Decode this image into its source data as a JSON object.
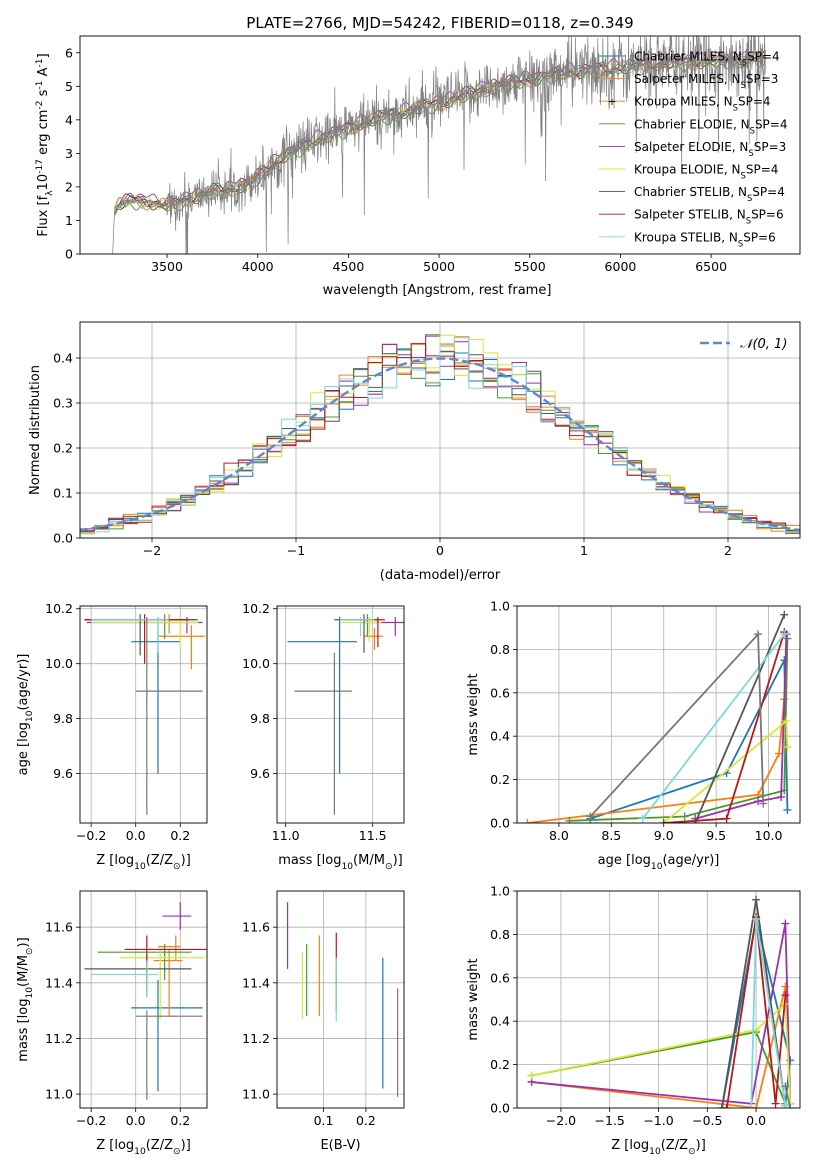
{
  "figure_title": "PLATE=2766, MJD=54242, FIBERID=0118, z=0.349",
  "series_styles": [
    {
      "name": "Chabrier MILES, N$_{SSP}$=4",
      "color": "#1f77b4"
    },
    {
      "name": "Salpeter MILES, N$_{SSP}$=3",
      "color": "#ff7f0e"
    },
    {
      "name": "Kroupa MILES, N$_{SSP}$=4",
      "color": "#e8801e"
    },
    {
      "name": "Chabrier ELODIE, N$_{SSP}$=4",
      "color": "#4b9a2f"
    },
    {
      "name": "Salpeter ELODIE, N$_{SSP}$=3",
      "color": "#9b30b0"
    },
    {
      "name": "Kroupa ELODIE, N$_{SSP}$=4",
      "color": "#d7e83a"
    },
    {
      "name": "Chabrier STELIB, N$_{SSP}$=4",
      "color": "#555555"
    },
    {
      "name": "Salpeter STELIB, N$_{SSP}$=6",
      "color": "#b81818"
    },
    {
      "name": "Kroupa STELIB, N$_{SSP}$=6",
      "color": "#7fd8e0"
    }
  ],
  "chart_data": [
    {
      "id": "spectrum",
      "type": "line",
      "xlabel": "wavelength [Angstrom, rest frame]",
      "ylabel": "Flux [f_λ10^-17 erg cm^-2 s^-1 A^-1]",
      "xlim": [
        3020,
        6990
      ],
      "ylim": [
        0,
        6.5
      ],
      "xticks": [
        3500,
        4000,
        4500,
        5000,
        5500,
        6000,
        6500
      ],
      "yticks": [
        0,
        1,
        2,
        3,
        4,
        5,
        6
      ],
      "legend_position": "right",
      "legend": [
        "Chabrier MILES, N_SSP=4",
        "Salpeter MILES, N_SSP=3",
        "Kroupa MILES, N_SSP=4",
        "Chabrier ELODIE, N_SSP=4",
        "Salpeter ELODIE, N_SSP=3",
        "Kroupa ELODIE, N_SSP=4",
        "Chabrier STELIB, N_SSP=4",
        "Salpeter STELIB, N_SSP=6",
        "Kroupa STELIB, N_SSP=6"
      ],
      "data_color": "#808080",
      "continuum": {
        "x": [
          3200,
          3210,
          3230,
          3300,
          3400,
          3480,
          3550,
          3650,
          3750,
          3850,
          3900,
          3950,
          4000,
          4050,
          4150,
          4250,
          4350,
          4500,
          4700,
          4900,
          5100,
          5300,
          5500,
          5700,
          5900,
          6100,
          6300,
          6500,
          6700,
          6800
        ],
        "y": [
          0.0,
          1.25,
          1.45,
          1.6,
          1.55,
          1.45,
          1.5,
          1.7,
          1.85,
          1.9,
          2.05,
          2.1,
          2.3,
          2.5,
          2.95,
          3.2,
          3.45,
          3.75,
          4.1,
          4.35,
          4.65,
          5.0,
          5.2,
          5.4,
          5.5,
          5.6,
          5.7,
          5.75,
          5.8,
          5.8
        ]
      }
    },
    {
      "id": "residual_histogram",
      "type": "histogram",
      "xlabel": "(data-model)/error",
      "ylabel": "Normed distribution",
      "xlim": [
        -2.5,
        2.5
      ],
      "ylim": [
        0,
        0.48
      ],
      "xticks": [
        -2,
        -1,
        0,
        1,
        2
      ],
      "yticks": [
        0.0,
        0.1,
        0.2,
        0.3,
        0.4
      ],
      "grid": true,
      "legend_position": "top-right",
      "legend": [
        "𝒩(0, 1)"
      ],
      "bin_width": 0.1,
      "reference_curve": {
        "name": "N(0,1)",
        "mean": 0,
        "sigma": 1,
        "color": "#5b87d4"
      }
    },
    {
      "id": "age_vs_Z",
      "type": "errorbar",
      "xlabel": "Z [log10(Z/Z⊙)]",
      "ylabel": "age [log10(age/yr)]",
      "xlim": [
        -0.25,
        0.32
      ],
      "ylim": [
        9.42,
        10.21
      ],
      "xticks": [
        -0.2,
        0.0,
        0.2
      ],
      "yticks": [
        9.6,
        9.8,
        10.0,
        10.2
      ],
      "grid": true,
      "points": [
        {
          "series": 0,
          "x": 0.1,
          "y": 10.08,
          "xerr": [
            0.12,
            0.1
          ],
          "yerr": [
            0.48,
            0.09
          ]
        },
        {
          "series": 1,
          "x": 0.25,
          "y": 10.1,
          "xerr": [
            0.15,
            0.06
          ],
          "yerr": [
            0.12,
            0.04
          ]
        },
        {
          "series": 2,
          "x": 0.15,
          "y": 10.16,
          "xerr": [
            0.25,
            0.1
          ],
          "yerr": [
            0.05,
            0.02
          ]
        },
        {
          "series": 3,
          "x": 0.13,
          "y": 10.16,
          "xerr": [
            0.35,
            0.15
          ],
          "yerr": [
            0.07,
            0.02
          ]
        },
        {
          "series": 4,
          "x": 0.23,
          "y": 10.15,
          "xerr": [
            0.45,
            0.07
          ],
          "yerr": [
            0.04,
            0.02
          ]
        },
        {
          "series": 5,
          "x": 0.2,
          "y": 10.15,
          "xerr": [
            0.4,
            0.08
          ],
          "yerr": [
            0.09,
            0.02
          ]
        },
        {
          "series": 6,
          "x": 0.02,
          "y": 10.16,
          "xerr": [
            0.25,
            0.25
          ],
          "yerr": [
            0.13,
            0.02
          ]
        },
        {
          "series": 7,
          "x": 0.04,
          "y": 10.16,
          "xerr": [
            0.27,
            0.2
          ],
          "yerr": [
            0.16,
            0.02
          ]
        },
        {
          "series": 8,
          "x": 0.1,
          "y": 10.16,
          "xerr": [
            0.3,
            0.05
          ],
          "yerr": [
            0.12,
            0.01
          ]
        },
        {
          "series": 9,
          "x": 0.05,
          "y": 9.9,
          "xerr": [
            0.05,
            0.25
          ],
          "yerr": [
            0.45,
            0.27
          ]
        }
      ]
    },
    {
      "id": "age_vs_mass",
      "type": "errorbar",
      "xlabel": "mass [log10(M/M⊙)]",
      "ylabel": "",
      "xlim": [
        10.95,
        11.68
      ],
      "ylim": [
        9.42,
        10.21
      ],
      "xticks": [
        11.0,
        11.5
      ],
      "yticks": [
        9.6,
        9.8,
        10.0,
        10.2
      ],
      "grid": true,
      "points": [
        {
          "series": 0,
          "x": 11.31,
          "y": 10.08,
          "xerr": [
            0.3,
            0.1
          ],
          "yerr": [
            0.48,
            0.09
          ]
        },
        {
          "series": 1,
          "x": 11.51,
          "y": 10.1,
          "xerr": [
            0.06,
            0.05
          ],
          "yerr": [
            0.05,
            0.03
          ]
        },
        {
          "series": 3,
          "x": 11.47,
          "y": 10.16,
          "xerr": [
            0.15,
            0.07
          ],
          "yerr": [
            0.06,
            0.02
          ]
        },
        {
          "series": 4,
          "x": 11.63,
          "y": 10.15,
          "xerr": [
            0.18,
            0.06
          ],
          "yerr": [
            0.05,
            0.02
          ]
        },
        {
          "series": 5,
          "x": 11.48,
          "y": 10.15,
          "xerr": [
            0.16,
            0.07
          ],
          "yerr": [
            0.07,
            0.02
          ]
        },
        {
          "series": 6,
          "x": 11.45,
          "y": 10.16,
          "xerr": [
            0.17,
            0.06
          ],
          "yerr": [
            0.12,
            0.02
          ]
        },
        {
          "series": 7,
          "x": 11.53,
          "y": 10.16,
          "xerr": [
            0.2,
            0.04
          ],
          "yerr": [
            0.1,
            0.01
          ]
        },
        {
          "series": 8,
          "x": 11.43,
          "y": 10.16,
          "xerr": [
            0.12,
            0.08
          ],
          "yerr": [
            0.06,
            0.01
          ]
        },
        {
          "series": 9,
          "x": 11.28,
          "y": 9.9,
          "xerr": [
            0.23,
            0.1
          ],
          "yerr": [
            0.45,
            0.14
          ]
        }
      ]
    },
    {
      "id": "mass_weight_vs_age",
      "type": "line",
      "xlabel": "age [log10(age/yr)]",
      "ylabel": "mass weight",
      "xlim": [
        7.6,
        10.3
      ],
      "ylim": [
        0.0,
        1.0
      ],
      "xticks": [
        8.0,
        8.5,
        9.0,
        9.5,
        10.0
      ],
      "yticks": [
        0.0,
        0.2,
        0.4,
        0.6,
        0.8,
        1.0
      ],
      "grid": true,
      "series": [
        {
          "style": 0,
          "x": [
            8.3,
            9.6,
            10.15,
            10.18
          ],
          "y": [
            0.02,
            0.23,
            0.75,
            0.06
          ]
        },
        {
          "style": 1,
          "x": [
            7.7,
            9.9,
            10.1,
            10.15
          ],
          "y": [
            0.0,
            0.13,
            0.32,
            0.57
          ]
        },
        {
          "style": 3,
          "x": [
            8.1,
            9.2,
            10.15,
            10.18
          ],
          "y": [
            0.01,
            0.03,
            0.15,
            0.85
          ]
        },
        {
          "style": 4,
          "x": [
            9.3,
            9.9,
            10.12,
            10.17
          ],
          "y": [
            0.02,
            0.1,
            0.12,
            0.87
          ]
        },
        {
          "style": 5,
          "x": [
            9.0,
            10.17,
            10.18
          ],
          "y": [
            0.0,
            0.47,
            0.35
          ]
        },
        {
          "style": 6,
          "x": [
            9.3,
            10.15
          ],
          "y": [
            0.0,
            0.96
          ]
        },
        {
          "style": 7,
          "x": [
            9.0,
            9.6,
            10.15
          ],
          "y": [
            0.0,
            0.02,
            0.88
          ]
        },
        {
          "style": 8,
          "x": [
            8.8,
            10.15
          ],
          "y": [
            0.02,
            0.87
          ]
        },
        {
          "style": 9,
          "x": [
            8.3,
            9.9,
            9.95
          ],
          "y": [
            0.03,
            0.87,
            0.09
          ]
        }
      ]
    },
    {
      "id": "mass_vs_Z",
      "type": "errorbar",
      "xlabel": "Z [log10(Z/Z⊙)]",
      "ylabel": "mass [log10(M/M⊙)]",
      "xlim": [
        -0.25,
        0.32
      ],
      "ylim": [
        10.95,
        11.73
      ],
      "xticks": [
        -0.2,
        0.0,
        0.2
      ],
      "yticks": [
        11.0,
        11.2,
        11.4,
        11.6
      ],
      "grid": true,
      "points": [
        {
          "series": 0,
          "x": 0.1,
          "y": 11.31,
          "xerr": [
            0.12,
            0.2
          ],
          "yerr": [
            0.3,
            0.1
          ]
        },
        {
          "series": 1,
          "x": 0.15,
          "y": 11.48,
          "xerr": [
            0.07,
            0.06
          ],
          "yerr": [
            0.2,
            0.04
          ]
        },
        {
          "series": 2,
          "x": 0.18,
          "y": 11.53,
          "xerr": [
            0.08,
            0.02
          ],
          "yerr": [
            0.05,
            0.04
          ]
        },
        {
          "series": 3,
          "x": 0.13,
          "y": 11.51,
          "xerr": [
            0.3,
            0.12
          ],
          "yerr": [
            0.1,
            0.03
          ]
        },
        {
          "series": 4,
          "x": 0.2,
          "y": 11.64,
          "xerr": [
            0.08,
            0.05
          ],
          "yerr": [
            0.05,
            0.05
          ]
        },
        {
          "series": 5,
          "x": 0.11,
          "y": 11.49,
          "xerr": [
            0.18,
            0.2
          ],
          "yerr": [
            0.22,
            0.03
          ]
        },
        {
          "series": 6,
          "x": 0.05,
          "y": 11.45,
          "xerr": [
            0.28,
            0.2
          ],
          "yerr": [
            0.1,
            0.05
          ]
        },
        {
          "series": 7,
          "x": 0.05,
          "y": 11.52,
          "xerr": [
            0.1,
            0.3
          ],
          "yerr": [
            0.15,
            0.05
          ]
        },
        {
          "series": 8,
          "x": 0.05,
          "y": 11.43,
          "xerr": [
            0.25,
            0.05
          ],
          "yerr": [
            0.08,
            0.05
          ]
        },
        {
          "series": 9,
          "x": 0.05,
          "y": 11.28,
          "xerr": [
            0.05,
            0.25
          ],
          "yerr": [
            0.3,
            0.02
          ]
        }
      ]
    },
    {
      "id": "mass_vs_ebv",
      "type": "errorbar",
      "xlabel": "E(B-V)",
      "ylabel": "",
      "xlim": [
        -0.01,
        0.29
      ],
      "ylim": [
        10.95,
        11.73
      ],
      "xticks": [
        0.1,
        0.2
      ],
      "yticks": [
        11.0,
        11.2,
        11.4,
        11.6
      ],
      "grid": true,
      "points": [
        {
          "series": 0,
          "x": 0.24,
          "y": 11.31,
          "xerr": [
            0,
            0
          ],
          "yerr": [
            0.29,
            0.18
          ]
        },
        {
          "series": 1,
          "x": 0.09,
          "y": 11.48,
          "xerr": [
            0,
            0
          ],
          "yerr": [
            0.2,
            0.09
          ]
        },
        {
          "series": 3,
          "x": 0.06,
          "y": 11.48,
          "xerr": [
            0,
            0
          ],
          "yerr": [
            0.2,
            0.06
          ]
        },
        {
          "series": 4,
          "x": 0.015,
          "y": 11.6,
          "xerr": [
            0,
            0
          ],
          "yerr": [
            0.15,
            0.09
          ]
        },
        {
          "series": 5,
          "x": 0.05,
          "y": 11.45,
          "xerr": [
            0,
            0
          ],
          "yerr": [
            0.18,
            0.06
          ]
        },
        {
          "series": 7,
          "x": 0.13,
          "y": 11.49,
          "xerr": [
            0,
            0
          ],
          "yerr": [
            0.19,
            0.09
          ]
        },
        {
          "series": 8,
          "x": 0.13,
          "y": 11.38,
          "xerr": [
            0,
            0
          ],
          "yerr": [
            0.12,
            0.11
          ]
        },
        {
          "series": 9,
          "x": 0.275,
          "y": 11.2,
          "xerr": [
            0,
            0
          ],
          "yerr": [
            0.21,
            0.18
          ]
        }
      ]
    },
    {
      "id": "mass_weight_vs_Z",
      "type": "line",
      "xlabel": "Z [log10(Z/Z⊙)]",
      "ylabel": "mass weight",
      "xlim": [
        -2.45,
        0.45
      ],
      "ylim": [
        0.0,
        1.0
      ],
      "xticks": [
        -2.0,
        -1.5,
        -1.0,
        -0.5,
        0.0
      ],
      "yticks": [
        0.0,
        0.2,
        0.4,
        0.6,
        0.8,
        1.0
      ],
      "grid": true,
      "series": [
        {
          "style": 0,
          "x": [
            -0.35,
            0.0,
            0.35,
            0.3
          ],
          "y": [
            0.0,
            0.87,
            0.22,
            0.02
          ]
        },
        {
          "style": 1,
          "x": [
            -2.3,
            0.0,
            0.3,
            0.35
          ],
          "y": [
            0.12,
            0.0,
            0.56,
            0.02
          ]
        },
        {
          "style": 3,
          "x": [
            -2.3,
            0.0,
            0.3
          ],
          "y": [
            0.15,
            0.35,
            0.02
          ]
        },
        {
          "style": 4,
          "x": [
            -2.3,
            -0.05,
            0.3,
            0.35
          ],
          "y": [
            0.12,
            0.02,
            0.85,
            0.02
          ]
        },
        {
          "style": 5,
          "x": [
            -2.3,
            0.0,
            0.3,
            0.35
          ],
          "y": [
            0.15,
            0.36,
            0.48,
            0.02
          ]
        },
        {
          "style": 6,
          "x": [
            -0.35,
            0.0,
            0.3
          ],
          "y": [
            0.0,
            0.96,
            0.01
          ]
        },
        {
          "style": 7,
          "x": [
            -0.3,
            0.0,
            0.2,
            0.3
          ],
          "y": [
            0.0,
            0.88,
            0.02,
            0.52
          ]
        },
        {
          "style": 8,
          "x": [
            -0.05,
            0.0,
            0.3
          ],
          "y": [
            0.0,
            0.87,
            0.01
          ]
        },
        {
          "style": 9,
          "x": [
            0.3,
            0.35
          ],
          "y": [
            0.1,
            0.0
          ]
        }
      ]
    }
  ]
}
